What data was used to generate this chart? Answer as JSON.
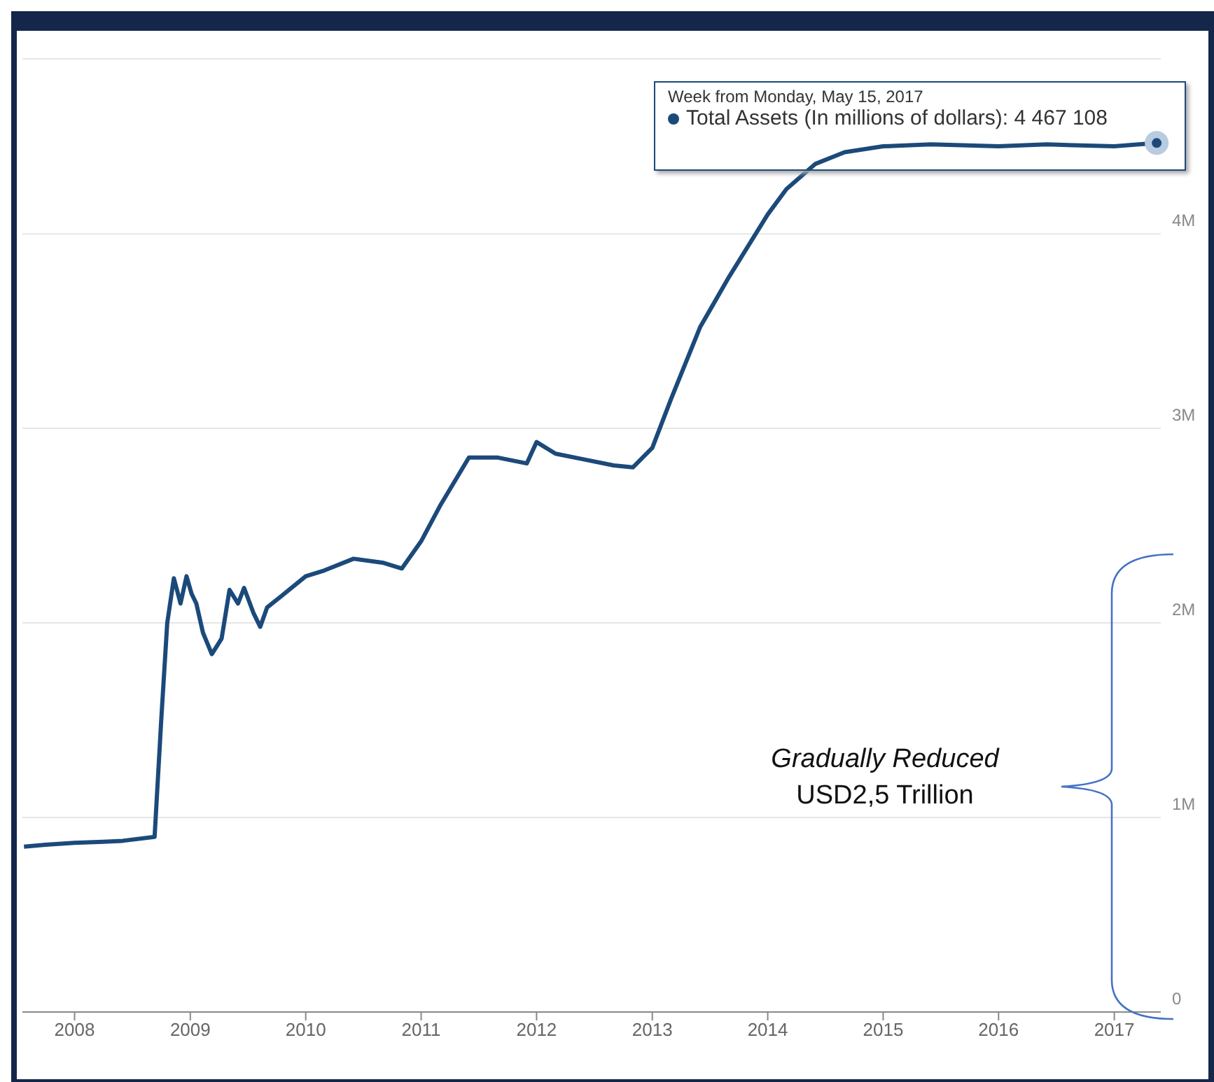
{
  "chart_data": {
    "type": "line",
    "x": [
      "2007-07-25",
      "2007-10",
      "2008-01",
      "2008-04",
      "2008-06",
      "2008-09-10",
      "2008-10-01",
      "2008-10-20",
      "2008-11-10",
      "2008-12-01",
      "2008-12-20",
      "2009-01-05",
      "2009-01-20",
      "2009-02-10",
      "2009-03-10",
      "2009-04-10",
      "2009-05-05",
      "2009-06-01",
      "2009-06-20",
      "2009-07-20",
      "2009-08-10",
      "2009-09-01",
      "2009-10-10",
      "2010-01",
      "2010-03",
      "2010-06",
      "2010-09",
      "2010-11",
      "2011-01",
      "2011-03",
      "2011-06",
      "2011-09",
      "2011-12",
      "2012-01",
      "2012-03",
      "2012-06",
      "2012-09",
      "2012-11",
      "2013-01",
      "2013-03",
      "2013-06",
      "2013-09",
      "2014-01",
      "2014-03",
      "2014-06",
      "2014-09",
      "2015-01",
      "2015-06",
      "2016-01",
      "2016-06",
      "2017-01",
      "2017-05-15"
    ],
    "series": [
      {
        "color": "#1b4a7a",
        "values": [
          850000,
          860000,
          870000,
          875000,
          880000,
          900000,
          1500000,
          2000000,
          2230000,
          2100000,
          2240000,
          2150000,
          2100000,
          1950000,
          1840000,
          1920000,
          2170000,
          2100000,
          2180000,
          2050000,
          1980000,
          2080000,
          2130000,
          2240000,
          2270000,
          2330000,
          2310000,
          2280000,
          2420000,
          2600000,
          2850000,
          2850000,
          2820000,
          2930000,
          2870000,
          2840000,
          2810000,
          2800000,
          2900000,
          3150000,
          3520000,
          3780000,
          4100000,
          4230000,
          4360000,
          4420000,
          4450000,
          4460000,
          4450000,
          4460000,
          4450000,
          4467108
        ]
      }
    ],
    "xlim": [
      "2007-07-20",
      "2017-05-28"
    ],
    "xticks": [
      "2008",
      "2009",
      "2010",
      "2011",
      "2012",
      "2013",
      "2014",
      "2015",
      "2016",
      "2017"
    ],
    "ylim": [
      0,
      4900000
    ],
    "yticks": [
      0,
      {
        "value": 1000000,
        "label": "1M"
      },
      {
        "value": 2000000,
        "label": "2M"
      },
      {
        "value": 3000000,
        "label": "3M"
      },
      {
        "value": 4000000,
        "label": "4M"
      }
    ],
    "grid": "y",
    "legend": false,
    "marker": "none",
    "line_style": "solid",
    "annotations": [
      "Week from Monday, May 15, 2017",
      {
        "text": "Total Assets (In millions of dollars): 4 467 108",
        "x": "2017-05-15",
        "y": 4467108
      },
      "Gradually Reduced",
      "USD2,5 Trillion"
    ]
  }
}
